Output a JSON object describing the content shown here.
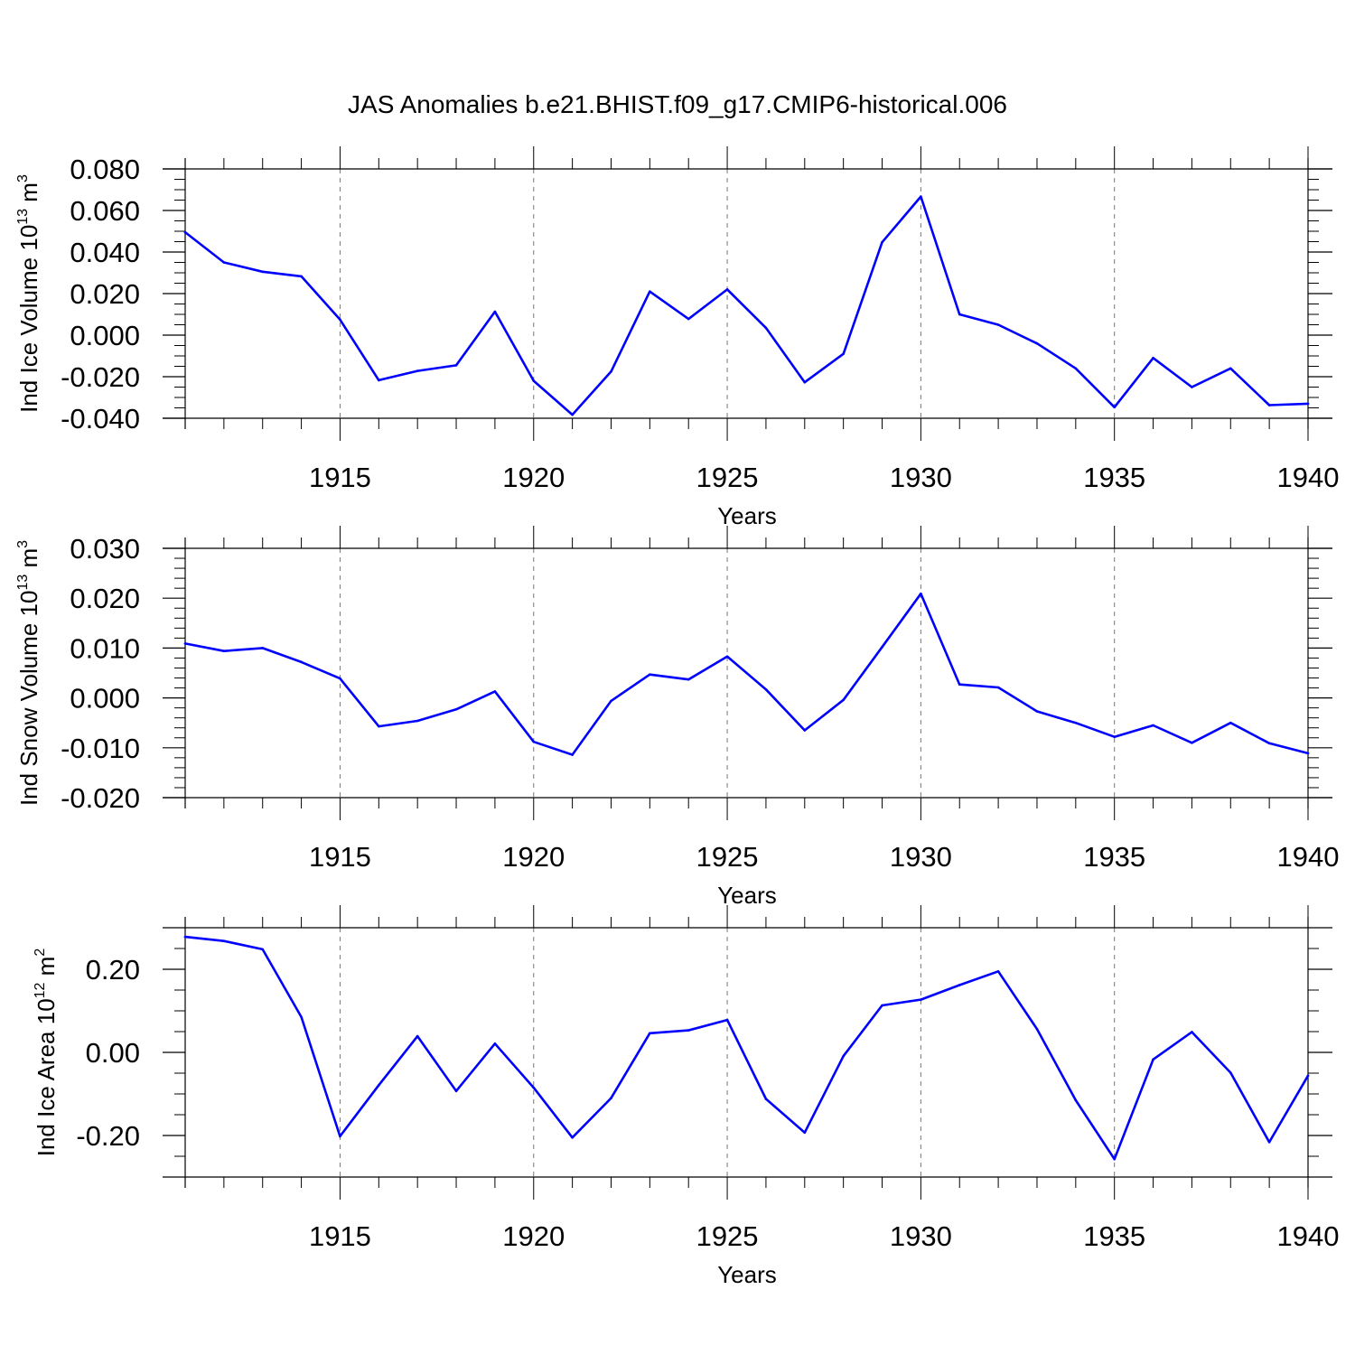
{
  "title": "JAS Anomalies b.e21.BHIST.f09_g17.CMIP6-historical.006",
  "colors": {
    "series": "#0000ff",
    "axis": "#000000",
    "grid": "#777777"
  },
  "chart_data": [
    {
      "type": "line",
      "ylabel": {
        "prefix": "Ind Ice Volume ",
        "unit_base": "10",
        "unit_exp": "13",
        "unit_after": " m",
        "unit_pow": "3"
      },
      "xlabel": "Years",
      "xlim": [
        1911,
        1940
      ],
      "ylim": [
        -0.04,
        0.08
      ],
      "x_ticks": [
        1915,
        1920,
        1925,
        1930,
        1935,
        1940
      ],
      "x_tick_labels": [
        "1915",
        "1920",
        "1925",
        "1930",
        "1935",
        "1940"
      ],
      "y_ticks": [
        0.08,
        0.06,
        0.04,
        0.02,
        0.0,
        -0.02,
        -0.04
      ],
      "y_tick_labels": [
        "0.080",
        "0.060",
        "0.040",
        "0.020",
        "0.000",
        "-0.020",
        "-0.040"
      ],
      "y_minor_step": 0.005,
      "grid": "vertical dashed at major x ticks",
      "series": [
        {
          "x": [
            1911,
            1912,
            1913,
            1914,
            1915,
            1916,
            1917,
            1918,
            1919,
            1920,
            1921,
            1922,
            1923,
            1924,
            1925,
            1926,
            1927,
            1928,
            1929,
            1930,
            1931,
            1932,
            1933,
            1934,
            1935,
            1936,
            1937,
            1938,
            1939,
            1940
          ],
          "values": [
            0.0495,
            0.035,
            0.0305,
            0.0283,
            0.0075,
            -0.0217,
            -0.0172,
            -0.0145,
            0.0113,
            -0.022,
            -0.0383,
            -0.0175,
            0.021,
            0.0078,
            0.022,
            0.0035,
            -0.0227,
            -0.009,
            0.0447,
            0.0667,
            0.01,
            0.005,
            -0.004,
            -0.016,
            -0.0347,
            -0.011,
            -0.025,
            -0.016,
            -0.0337,
            -0.033
          ]
        }
      ]
    },
    {
      "type": "line",
      "ylabel": {
        "prefix": "Ind Snow Volume ",
        "unit_base": "10",
        "unit_exp": "13",
        "unit_after": " m",
        "unit_pow": "3"
      },
      "xlabel": "Years",
      "xlim": [
        1911,
        1940
      ],
      "ylim": [
        -0.02,
        0.03
      ],
      "x_ticks": [
        1915,
        1920,
        1925,
        1930,
        1935,
        1940
      ],
      "x_tick_labels": [
        "1915",
        "1920",
        "1925",
        "1930",
        "1935",
        "1940"
      ],
      "y_ticks": [
        0.03,
        0.02,
        0.01,
        0.0,
        -0.01,
        -0.02
      ],
      "y_tick_labels": [
        "0.030",
        "0.020",
        "0.010",
        "0.000",
        "-0.010",
        "-0.020"
      ],
      "y_minor_step": 0.002,
      "grid": "vertical dashed at major x ticks",
      "series": [
        {
          "x": [
            1911,
            1912,
            1913,
            1914,
            1915,
            1916,
            1917,
            1918,
            1919,
            1920,
            1921,
            1922,
            1923,
            1924,
            1925,
            1926,
            1927,
            1928,
            1929,
            1930,
            1931,
            1932,
            1933,
            1934,
            1935,
            1936,
            1937,
            1938,
            1939,
            1940
          ],
          "values": [
            0.0109,
            0.0094,
            0.01,
            0.0072,
            0.0039,
            -0.0057,
            -0.0046,
            -0.0023,
            0.0013,
            -0.0088,
            -0.0114,
            -0.0006,
            0.0047,
            0.0037,
            0.0083,
            0.0017,
            -0.0065,
            -0.0004,
            0.0102,
            0.0209,
            0.0027,
            0.0021,
            -0.0027,
            -0.005,
            -0.0078,
            -0.0055,
            -0.009,
            -0.005,
            -0.0091,
            -0.0111
          ]
        }
      ]
    },
    {
      "type": "line",
      "ylabel": {
        "prefix": "Ind Ice Area ",
        "unit_base": "10",
        "unit_exp": "12",
        "unit_after": " m",
        "unit_pow": "2"
      },
      "xlabel": "Years",
      "xlim": [
        1911,
        1940
      ],
      "ylim": [
        -0.3,
        0.3
      ],
      "x_ticks": [
        1915,
        1920,
        1925,
        1930,
        1935,
        1940
      ],
      "x_tick_labels": [
        "1915",
        "1920",
        "1925",
        "1930",
        "1935",
        "1940"
      ],
      "y_ticks": [
        0.2,
        0.0,
        -0.2
      ],
      "y_tick_labels": [
        "0.20",
        "0.00",
        "-0.20"
      ],
      "y_minor_step": 0.05,
      "grid": "vertical dashed at major x ticks",
      "series": [
        {
          "x": [
            1911,
            1912,
            1913,
            1914,
            1915,
            1916,
            1917,
            1918,
            1919,
            1920,
            1921,
            1922,
            1923,
            1924,
            1925,
            1926,
            1927,
            1928,
            1929,
            1930,
            1931,
            1932,
            1933,
            1934,
            1935,
            1936,
            1937,
            1938,
            1939,
            1940
          ],
          "values": [
            0.278,
            0.268,
            0.248,
            0.085,
            -0.202,
            -0.079,
            0.039,
            -0.093,
            0.021,
            -0.085,
            -0.205,
            -0.11,
            0.046,
            0.053,
            0.078,
            -0.112,
            -0.193,
            -0.009,
            0.113,
            0.127,
            0.162,
            0.195,
            0.056,
            -0.115,
            -0.257,
            -0.017,
            0.049,
            -0.049,
            -0.216,
            -0.056
          ]
        }
      ]
    }
  ]
}
